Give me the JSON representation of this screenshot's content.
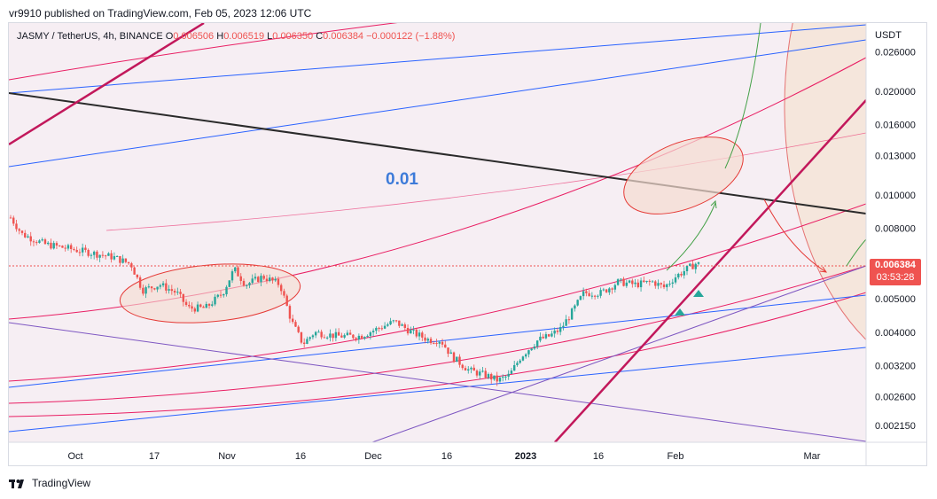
{
  "header": {
    "publisher": "vr9910 published on TradingView.com, Feb 05, 2023 12:06 UTC"
  },
  "legend": {
    "symbol": "JASMY / TetherUS, 4h, BINANCE",
    "o_label": "O",
    "o_value": "0.006506",
    "h_label": "H",
    "h_value": "0.006519",
    "l_label": "L",
    "l_value": "0.006350",
    "c_label": "C",
    "c_value": "0.006384",
    "change": "−0.000122 (−1.88%)"
  },
  "axis": {
    "unit": "USDT"
  },
  "price_tag": {
    "price": "0.006384",
    "countdown": "03:53:28"
  },
  "annotation": {
    "text": "0.01"
  },
  "footer": {
    "brand": "TradingView"
  },
  "colors": {
    "up": "#26a69a",
    "down": "#ef5350",
    "red_line": "#c2185b",
    "blue_line": "#2962ff",
    "purple_line": "#7e57c2",
    "black_line": "#2a2a2a"
  },
  "chart_data": {
    "type": "candlestick",
    "title": "JASMY / TetherUS, 4h, BINANCE",
    "ylabel": "USDT",
    "y_scale": "log",
    "ylim": [
      0.00192,
      0.0315
    ],
    "yticks": [
      0.026,
      0.02,
      0.016,
      0.013,
      0.01,
      0.008,
      0.005,
      0.004,
      0.0032,
      0.0026,
      0.00215
    ],
    "ytick_labels": [
      "0.026000",
      "0.020000",
      "0.016000",
      "0.013000",
      "0.010000",
      "0.008000",
      "0.005000",
      "0.004000",
      "0.003200",
      "0.002600",
      "0.002150"
    ],
    "xticks": [
      "Oct",
      "17",
      "Nov",
      "16",
      "Dec",
      "16",
      "2023",
      "16",
      "Feb",
      "Mar"
    ],
    "last_price": 0.006384,
    "price_path": [
      {
        "t": 0,
        "p": 0.0086
      },
      {
        "t": 2,
        "p": 0.0077
      },
      {
        "t": 6,
        "p": 0.0072
      },
      {
        "t": 10,
        "p": 0.007
      },
      {
        "t": 14,
        "p": 0.0068
      },
      {
        "t": 18,
        "p": 0.0066
      },
      {
        "t": 21,
        "p": 0.0063
      },
      {
        "t": 23,
        "p": 0.0053
      },
      {
        "t": 26,
        "p": 0.0055
      },
      {
        "t": 29,
        "p": 0.0052
      },
      {
        "t": 31,
        "p": 0.0047
      },
      {
        "t": 34,
        "p": 0.0047
      },
      {
        "t": 37,
        "p": 0.0052
      },
      {
        "t": 39,
        "p": 0.0061
      },
      {
        "t": 41,
        "p": 0.0055
      },
      {
        "t": 44,
        "p": 0.0058
      },
      {
        "t": 47,
        "p": 0.0055
      },
      {
        "t": 49,
        "p": 0.0043
      },
      {
        "t": 51,
        "p": 0.0037
      },
      {
        "t": 53,
        "p": 0.004
      },
      {
        "t": 57,
        "p": 0.0039
      },
      {
        "t": 61,
        "p": 0.0039
      },
      {
        "t": 64,
        "p": 0.0041
      },
      {
        "t": 67,
        "p": 0.0043
      },
      {
        "t": 70,
        "p": 0.004
      },
      {
        "t": 73,
        "p": 0.0038
      },
      {
        "t": 75,
        "p": 0.0038
      },
      {
        "t": 77,
        "p": 0.0034
      },
      {
        "t": 80,
        "p": 0.0031
      },
      {
        "t": 83,
        "p": 0.003
      },
      {
        "t": 85,
        "p": 0.0029
      },
      {
        "t": 87,
        "p": 0.003
      },
      {
        "t": 89,
        "p": 0.0034
      },
      {
        "t": 92,
        "p": 0.0038
      },
      {
        "t": 94,
        "p": 0.0039
      },
      {
        "t": 96,
        "p": 0.0041
      },
      {
        "t": 98,
        "p": 0.0046
      },
      {
        "t": 100,
        "p": 0.0052
      },
      {
        "t": 103,
        "p": 0.0052
      },
      {
        "t": 106,
        "p": 0.0056
      },
      {
        "t": 109,
        "p": 0.0055
      },
      {
        "t": 112,
        "p": 0.0056
      },
      {
        "t": 114,
        "p": 0.0054
      },
      {
        "t": 116,
        "p": 0.0058
      },
      {
        "t": 118,
        "p": 0.0061
      },
      {
        "t": 120,
        "p": 0.0064
      }
    ]
  }
}
